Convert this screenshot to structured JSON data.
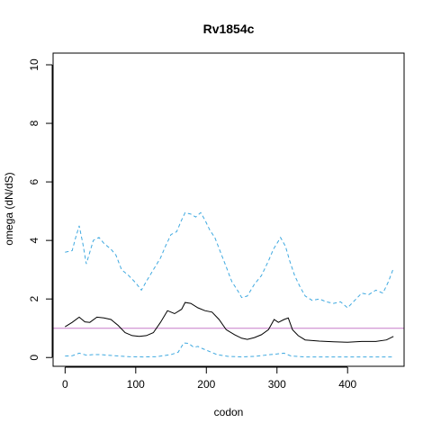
{
  "chart_data": {
    "type": "line",
    "title": "Rv1854c",
    "xlabel": "codon",
    "ylabel": "omega (dN/dS)",
    "xlim": [
      -17,
      480
    ],
    "ylim": [
      -0.3,
      10.4
    ],
    "xticks": [
      0,
      100,
      200,
      300,
      400
    ],
    "yticks": [
      0,
      2,
      4,
      6,
      8,
      10
    ],
    "grid": false,
    "legend": "none",
    "reference_line": {
      "y": 1,
      "color": "#c77cc9"
    },
    "series": [
      {
        "color": "#000000",
        "dash": "solid",
        "points": [
          [
            0,
            1.05
          ],
          [
            10,
            1.2
          ],
          [
            20,
            1.38
          ],
          [
            28,
            1.22
          ],
          [
            35,
            1.2
          ],
          [
            45,
            1.38
          ],
          [
            55,
            1.35
          ],
          [
            65,
            1.3
          ],
          [
            75,
            1.1
          ],
          [
            85,
            0.85
          ],
          [
            95,
            0.75
          ],
          [
            105,
            0.72
          ],
          [
            115,
            0.75
          ],
          [
            125,
            0.85
          ],
          [
            135,
            1.2
          ],
          [
            145,
            1.6
          ],
          [
            155,
            1.5
          ],
          [
            165,
            1.65
          ],
          [
            170,
            1.88
          ],
          [
            178,
            1.85
          ],
          [
            188,
            1.7
          ],
          [
            198,
            1.6
          ],
          [
            208,
            1.55
          ],
          [
            218,
            1.3
          ],
          [
            228,
            0.95
          ],
          [
            240,
            0.78
          ],
          [
            250,
            0.66
          ],
          [
            258,
            0.62
          ],
          [
            268,
            0.68
          ],
          [
            278,
            0.78
          ],
          [
            288,
            0.95
          ],
          [
            296,
            1.3
          ],
          [
            302,
            1.2
          ],
          [
            310,
            1.3
          ],
          [
            316,
            1.35
          ],
          [
            322,
            0.95
          ],
          [
            330,
            0.75
          ],
          [
            340,
            0.6
          ],
          [
            360,
            0.56
          ],
          [
            380,
            0.54
          ],
          [
            400,
            0.52
          ],
          [
            420,
            0.55
          ],
          [
            440,
            0.55
          ],
          [
            455,
            0.6
          ],
          [
            465,
            0.72
          ]
        ]
      },
      {
        "color": "#3fa9e0",
        "dash": "dashed",
        "points": [
          [
            0,
            3.6
          ],
          [
            10,
            3.65
          ],
          [
            15,
            4.1
          ],
          [
            20,
            4.5
          ],
          [
            25,
            3.9
          ],
          [
            30,
            3.2
          ],
          [
            35,
            3.6
          ],
          [
            40,
            4.0
          ],
          [
            48,
            4.1
          ],
          [
            55,
            3.9
          ],
          [
            65,
            3.7
          ],
          [
            72,
            3.5
          ],
          [
            80,
            3.0
          ],
          [
            90,
            2.8
          ],
          [
            100,
            2.55
          ],
          [
            108,
            2.3
          ],
          [
            115,
            2.6
          ],
          [
            125,
            3.0
          ],
          [
            135,
            3.4
          ],
          [
            142,
            3.8
          ],
          [
            150,
            4.2
          ],
          [
            158,
            4.3
          ],
          [
            165,
            4.7
          ],
          [
            170,
            4.95
          ],
          [
            178,
            4.9
          ],
          [
            185,
            4.8
          ],
          [
            192,
            4.95
          ],
          [
            198,
            4.7
          ],
          [
            205,
            4.35
          ],
          [
            212,
            4.1
          ],
          [
            220,
            3.6
          ],
          [
            228,
            3.1
          ],
          [
            236,
            2.6
          ],
          [
            244,
            2.3
          ],
          [
            250,
            2.05
          ],
          [
            258,
            2.1
          ],
          [
            268,
            2.5
          ],
          [
            278,
            2.8
          ],
          [
            288,
            3.3
          ],
          [
            295,
            3.7
          ],
          [
            300,
            3.9
          ],
          [
            305,
            4.1
          ],
          [
            312,
            3.8
          ],
          [
            318,
            3.3
          ],
          [
            325,
            2.8
          ],
          [
            333,
            2.4
          ],
          [
            340,
            2.1
          ],
          [
            350,
            1.95
          ],
          [
            360,
            2.0
          ],
          [
            370,
            1.9
          ],
          [
            380,
            1.85
          ],
          [
            390,
            1.9
          ],
          [
            400,
            1.7
          ],
          [
            410,
            1.95
          ],
          [
            420,
            2.2
          ],
          [
            430,
            2.15
          ],
          [
            440,
            2.3
          ],
          [
            450,
            2.2
          ],
          [
            458,
            2.6
          ],
          [
            465,
            3.05
          ]
        ]
      },
      {
        "color": "#3fa9e0",
        "dash": "dashed",
        "points": [
          [
            0,
            0.05
          ],
          [
            10,
            0.06
          ],
          [
            20,
            0.15
          ],
          [
            30,
            0.08
          ],
          [
            40,
            0.1
          ],
          [
            50,
            0.1
          ],
          [
            60,
            0.08
          ],
          [
            70,
            0.06
          ],
          [
            90,
            0.03
          ],
          [
            110,
            0.02
          ],
          [
            130,
            0.03
          ],
          [
            150,
            0.1
          ],
          [
            160,
            0.18
          ],
          [
            168,
            0.5
          ],
          [
            175,
            0.48
          ],
          [
            182,
            0.35
          ],
          [
            188,
            0.38
          ],
          [
            195,
            0.3
          ],
          [
            205,
            0.2
          ],
          [
            215,
            0.1
          ],
          [
            230,
            0.04
          ],
          [
            250,
            0.02
          ],
          [
            270,
            0.04
          ],
          [
            290,
            0.1
          ],
          [
            300,
            0.12
          ],
          [
            310,
            0.15
          ],
          [
            320,
            0.05
          ],
          [
            340,
            0.02
          ],
          [
            380,
            0.02
          ],
          [
            420,
            0.02
          ],
          [
            465,
            0.02
          ]
        ]
      }
    ]
  }
}
